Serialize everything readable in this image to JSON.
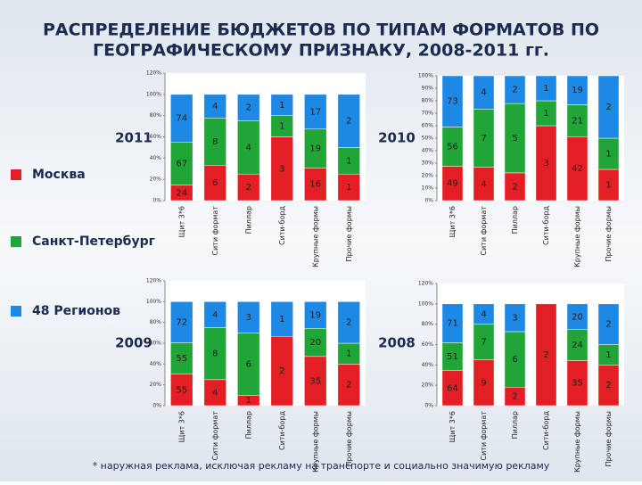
{
  "title": [
    "РАСПРЕДЕЛЕНИЕ БЮДЖЕТОВ ПО ТИПАМ ФОРМАТОВ ПО",
    "ГЕОГРАФИЧЕСКОМУ ПРИЗНАКУ, 2008-2011 гг."
  ],
  "legend": [
    {
      "name": "Москва",
      "color": "#e31e24"
    },
    {
      "name": "Санкт-Петербург",
      "color": "#1fa636"
    },
    {
      "name": "48 Регионов",
      "color": "#1e88e5"
    }
  ],
  "footnote": "* наружная реклама, исключая рекламу на транспорте и социально значимую рекламу",
  "chart_data": [
    {
      "type": "bar",
      "stacking": "percent",
      "title": "2011",
      "categories": [
        "Щит 3*6",
        "Сити формат",
        "Пиллар",
        "Сити-борд",
        "Крупные формы",
        "Прочие формы"
      ],
      "series": [
        {
          "values": [
            24,
            6,
            2,
            3,
            16,
            1
          ]
        },
        {
          "values": [
            67,
            8,
            4,
            1,
            19,
            1
          ]
        },
        {
          "values": [
            74,
            4,
            2,
            1,
            17,
            2
          ]
        }
      ],
      "ylim": [
        0,
        120
      ],
      "yticks": [
        {
          "value": 0,
          "label": "0%"
        },
        {
          "value": 20,
          "label": "20%"
        },
        {
          "value": 40,
          "label": "40%"
        },
        {
          "value": 60,
          "label": "60%"
        },
        {
          "value": 80,
          "label": "80%"
        },
        {
          "value": 100,
          "label": "100%"
        },
        {
          "value": 120,
          "label": "120%"
        }
      ]
    },
    {
      "type": "bar",
      "stacking": "percent",
      "title": "2010",
      "categories": [
        "Щит 3*6",
        "Сити формат",
        "Пиллар",
        "Сити-борд",
        "Крупные формы",
        "Прочие формы"
      ],
      "series": [
        {
          "values": [
            49,
            4,
            2,
            3,
            42,
            1
          ]
        },
        {
          "values": [
            56,
            7,
            5,
            1,
            21,
            1
          ]
        },
        {
          "values": [
            73,
            4,
            2,
            1,
            19,
            2
          ]
        }
      ],
      "ylim": [
        0,
        100
      ],
      "yticks": [
        {
          "value": 0,
          "label": "0%"
        },
        {
          "value": 10,
          "label": "10%"
        },
        {
          "value": 20,
          "label": "20%"
        },
        {
          "value": 30,
          "label": "30%"
        },
        {
          "value": 40,
          "label": "40%"
        },
        {
          "value": 50,
          "label": "50%"
        },
        {
          "value": 60,
          "label": "60%"
        },
        {
          "value": 70,
          "label": "70%"
        },
        {
          "value": 80,
          "label": "80%"
        },
        {
          "value": 90,
          "label": "90%"
        },
        {
          "value": 100,
          "label": "100%"
        }
      ]
    },
    {
      "type": "bar",
      "stacking": "percent",
      "title": "2009",
      "categories": [
        "Щит 3*6",
        "Сити формат",
        "Пиллар",
        "Сити-борд",
        "Крупные формы",
        "Прочие формы"
      ],
      "series": [
        {
          "values": [
            55,
            4,
            1,
            2,
            35,
            2
          ]
        },
        {
          "values": [
            55,
            8,
            6,
            null,
            20,
            1
          ]
        },
        {
          "values": [
            72,
            4,
            3,
            1,
            19,
            2
          ]
        }
      ],
      "ylim": [
        0,
        120
      ],
      "yticks": [
        {
          "value": 0,
          "label": "0%"
        },
        {
          "value": 20,
          "label": "20%"
        },
        {
          "value": 40,
          "label": "40%"
        },
        {
          "value": 60,
          "label": "60%"
        },
        {
          "value": 80,
          "label": "80%"
        },
        {
          "value": 100,
          "label": "100%"
        },
        {
          "value": 120,
          "label": "120%"
        }
      ]
    },
    {
      "type": "bar",
      "stacking": "percent",
      "title": "2008",
      "categories": [
        "Щит 3*6",
        "Сити формат",
        "Пиллар",
        "Сити-борд",
        "Крупные формы",
        "Прочие формы"
      ],
      "series": [
        {
          "values": [
            64,
            9,
            2,
            2,
            35,
            2
          ]
        },
        {
          "values": [
            51,
            7,
            6,
            null,
            24,
            1
          ]
        },
        {
          "values": [
            71,
            4,
            3,
            null,
            20,
            2
          ]
        }
      ],
      "ylim": [
        0,
        120
      ],
      "yticks": [
        {
          "value": 0,
          "label": "0%"
        },
        {
          "value": 20,
          "label": "20%"
        },
        {
          "value": 40,
          "label": "40%"
        },
        {
          "value": 60,
          "label": "60%"
        },
        {
          "value": 80,
          "label": "80%"
        },
        {
          "value": 100,
          "label": "100%"
        },
        {
          "value": 120,
          "label": "120%"
        }
      ]
    }
  ]
}
